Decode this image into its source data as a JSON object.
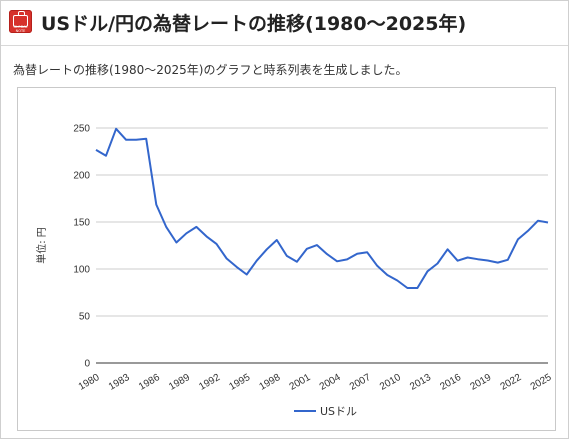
{
  "header": {
    "title": "USドル/円の為替レートの推移(1980～2025年)",
    "logo_text": "GLOBAL NOTE",
    "logo_icon": "briefcase-icon"
  },
  "subtitle": "為替レートの推移(1980～2025年)のグラフと時系列表を生成しました。",
  "colors": {
    "series": "#3366cc",
    "grid": "#cccccc",
    "logo": "#d6312b"
  },
  "chart_data": {
    "type": "line",
    "title": "",
    "xlabel": "",
    "ylabel": "単位: 円",
    "ylim": [
      0,
      250
    ],
    "yticks": [
      0,
      50,
      100,
      150,
      200,
      250
    ],
    "xlim": [
      1980,
      2025
    ],
    "xticks": [
      "1980",
      "1983",
      "1986",
      "1989",
      "1992",
      "1995",
      "1998",
      "2001",
      "2004",
      "2007",
      "2010",
      "2013",
      "2016",
      "2019",
      "2022",
      "2025"
    ],
    "grid": true,
    "legend": "bottom",
    "series": [
      {
        "name": "USドル",
        "x": [
          1980,
          1981,
          1982,
          1983,
          1984,
          1985,
          1986,
          1987,
          1988,
          1989,
          1990,
          1991,
          1992,
          1993,
          1994,
          1995,
          1996,
          1997,
          1998,
          1999,
          2000,
          2001,
          2002,
          2003,
          2004,
          2005,
          2006,
          2007,
          2008,
          2009,
          2010,
          2011,
          2012,
          2013,
          2014,
          2015,
          2016,
          2017,
          2018,
          2019,
          2020,
          2021,
          2022,
          2023,
          2024,
          2025
        ],
        "values": [
          226.7,
          220.5,
          249.1,
          237.5,
          237.5,
          238.5,
          168.5,
          144.6,
          128.2,
          138.0,
          144.8,
          134.7,
          126.7,
          111.2,
          102.2,
          94.1,
          108.8,
          121.0,
          130.9,
          113.9,
          107.8,
          121.5,
          125.4,
          115.9,
          108.2,
          110.2,
          116.3,
          117.8,
          103.4,
          93.6,
          87.8,
          79.8,
          79.8,
          97.6,
          105.9,
          121.0,
          108.8,
          112.2,
          110.4,
          109.0,
          106.8,
          109.8,
          131.5,
          140.5,
          151.4,
          149.5
        ]
      }
    ]
  }
}
